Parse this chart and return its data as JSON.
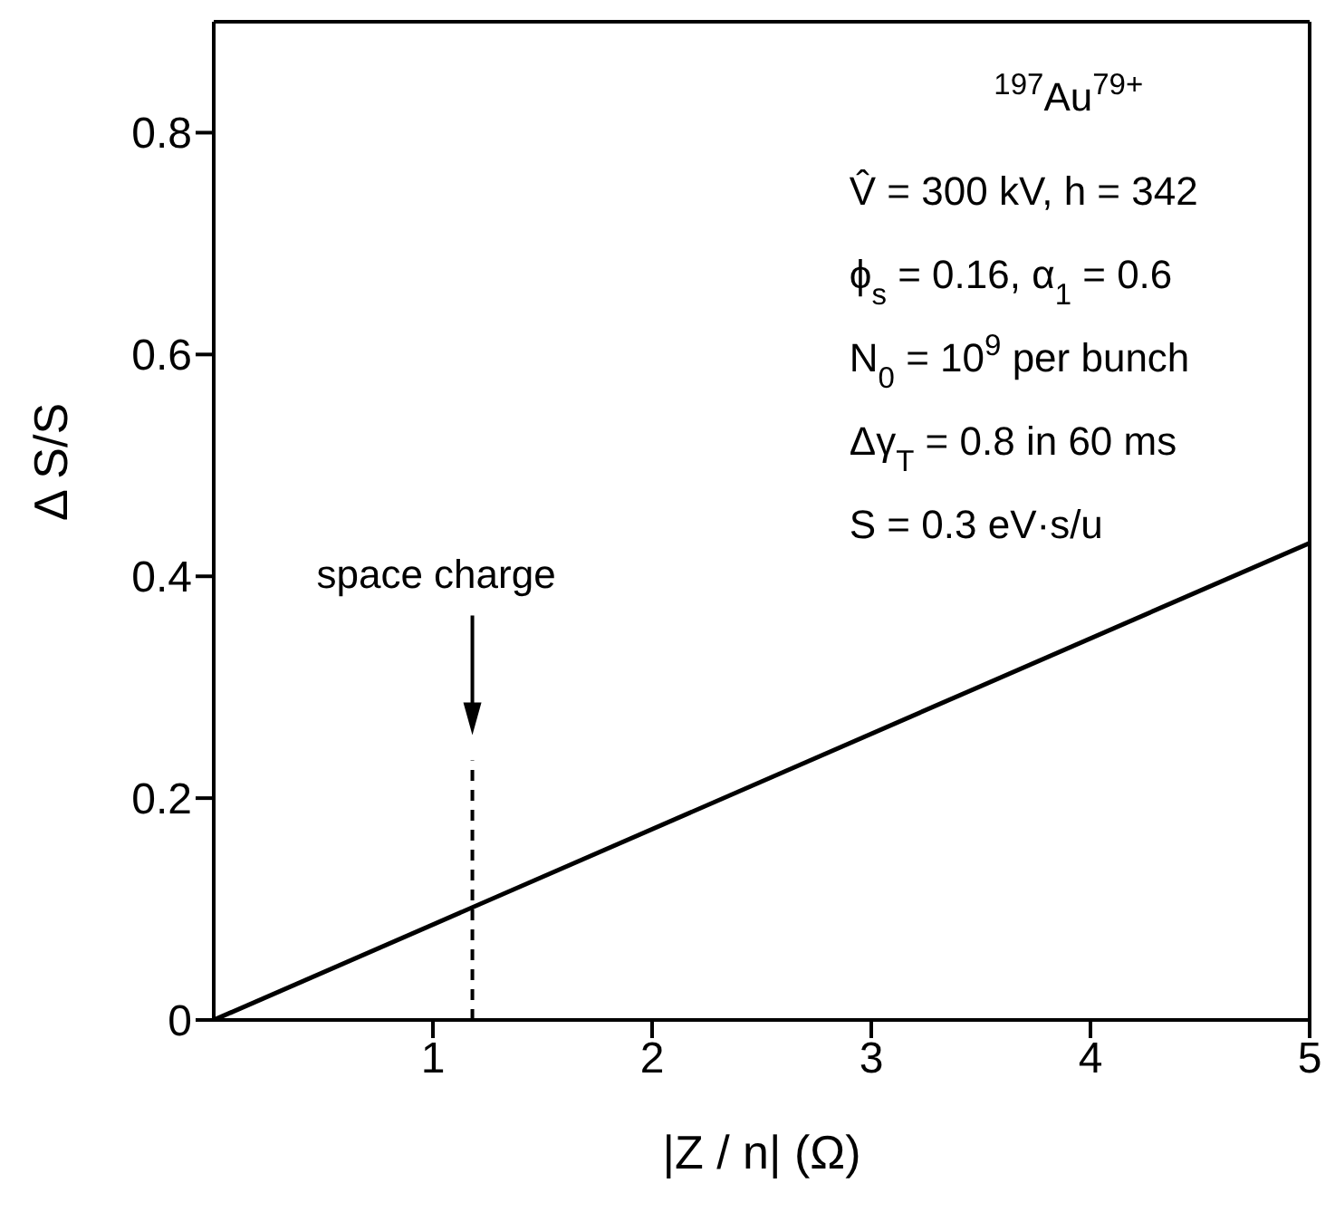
{
  "chart_data": {
    "type": "line",
    "xlabel": "|Z / n| (Ω)",
    "ylabel": "Δ S/S",
    "series": [
      {
        "color": "#000000",
        "x": [
          0,
          5
        ],
        "values": [
          0,
          0.43
        ]
      }
    ],
    "xlim": [
      0,
      5
    ],
    "xticks": [
      1,
      2,
      3,
      4,
      5
    ],
    "ylim": [
      0,
      0.9
    ],
    "yticks": [
      0,
      0.2,
      0.4,
      0.6,
      0.8
    ],
    "legend": false,
    "marker": "none",
    "line_style": "solid",
    "ref_lines": [
      {
        "axis": "x",
        "value": 1.18,
        "label": "space charge",
        "color": "#000000",
        "line_style": "dashed"
      }
    ],
    "annotations": [
      "$^{197}$Au$^{79+}$",
      "V̂ = 300 kV, h = 342",
      "ϕ$_{s}$ = 0.16, α$_{1}$ = 0.6",
      "N$_{0}$ = 10$^{9}$ per bunch",
      "Δγ$_{T}$ = 0.8 in 60 ms",
      "S = 0.3 eV·s/u"
    ]
  }
}
